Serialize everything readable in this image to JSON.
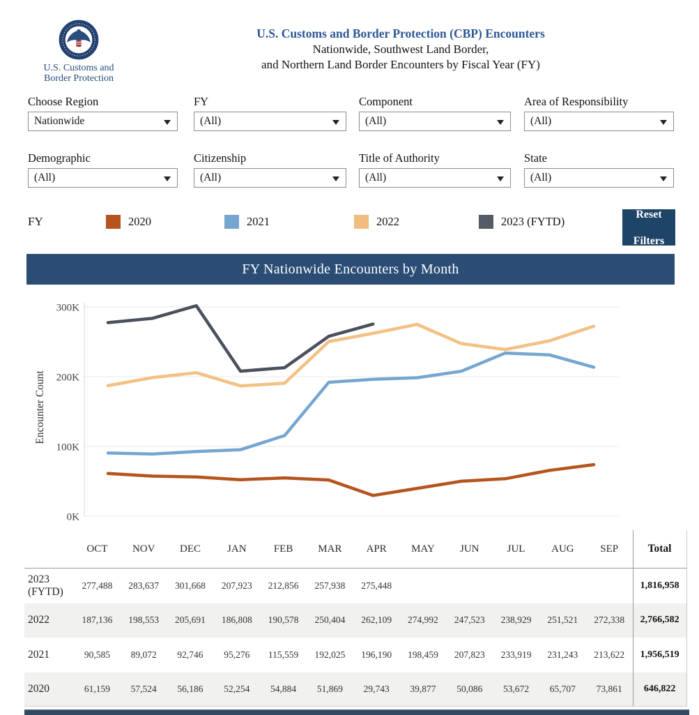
{
  "header": {
    "agency_line1": "U.S. Customs and",
    "agency_line2": "Border Protection",
    "title": "U.S. Customs and Border Protection (CBP) Encounters",
    "subtitle1": "Nationwide, Southwest Land Border,",
    "subtitle2": "and Northern Land Border Encounters by Fiscal Year (FY)",
    "title_color": "#2d5796"
  },
  "filters": {
    "items": [
      {
        "label": "Choose Region",
        "value": "Nationwide"
      },
      {
        "label": "FY",
        "value": "(All)"
      },
      {
        "label": "Component",
        "value": "(All)"
      },
      {
        "label": "Area of Responsibility",
        "value": "(All)"
      },
      {
        "label": "Demographic",
        "value": "(All)"
      },
      {
        "label": "Citizenship",
        "value": "(All)"
      },
      {
        "label": "Title of Authority",
        "value": "(All)"
      },
      {
        "label": "State",
        "value": "(All)"
      }
    ]
  },
  "legend": {
    "title": "FY",
    "items": [
      {
        "label": "2020",
        "color": "#b5541d"
      },
      {
        "label": "2021",
        "color": "#76a6d0"
      },
      {
        "label": "2022",
        "color": "#f0bd7e"
      },
      {
        "label": "2023 (FYTD)",
        "color": "#545a66"
      }
    ]
  },
  "reset_button": {
    "line1": "Reset",
    "line2": "Filters",
    "color": "#1e4468"
  },
  "chart_data": {
    "type": "line",
    "title": "FY Nationwide Encounters by Month",
    "x_categories": [
      "OCT",
      "NOV",
      "DEC",
      "JAN",
      "FEB",
      "MAR",
      "APR",
      "MAY",
      "JUN",
      "JUL",
      "AUG",
      "SEP"
    ],
    "ylabel": "Encounter Count",
    "yticks": [
      "0K",
      "100K",
      "200K",
      "300K"
    ],
    "ylim": [
      0,
      300000
    ],
    "grid": "horizontal",
    "legend_position": "above",
    "series": [
      {
        "name": "2020",
        "color": "#b5541d",
        "values": [
          61159,
          57524,
          56186,
          52254,
          54884,
          51869,
          29743,
          39877,
          50086,
          53672,
          65707,
          73861
        ]
      },
      {
        "name": "2021",
        "color": "#76a6d0",
        "values": [
          90585,
          89072,
          92746,
          95276,
          115559,
          192025,
          196190,
          198459,
          207823,
          233919,
          231243,
          213622
        ]
      },
      {
        "name": "2022",
        "color": "#f2c183",
        "values": [
          187136,
          198553,
          205691,
          186808,
          190578,
          250404,
          262109,
          274992,
          247523,
          238929,
          251521,
          272338
        ]
      },
      {
        "name": "2023 (FYTD)",
        "color": "#4a505c",
        "values": [
          277488,
          283637,
          301668,
          207923,
          212856,
          257938,
          275448,
          null,
          null,
          null,
          null,
          null
        ]
      }
    ]
  },
  "table": {
    "columns": [
      "OCT",
      "NOV",
      "DEC",
      "JAN",
      "FEB",
      "MAR",
      "APR",
      "MAY",
      "JUN",
      "JUL",
      "AUG",
      "SEP"
    ],
    "total_label": "Total",
    "rows": [
      {
        "label": "2023 (FYTD)",
        "cells": [
          "277,488",
          "283,637",
          "301,668",
          "207,923",
          "212,856",
          "257,938",
          "275,448",
          "",
          "",
          "",
          "",
          ""
        ],
        "total": "1,816,958"
      },
      {
        "label": "2022",
        "cells": [
          "187,136",
          "198,553",
          "205,691",
          "186,808",
          "190,578",
          "250,404",
          "262,109",
          "274,992",
          "247,523",
          "238,929",
          "251,521",
          "272,338"
        ],
        "total": "2,766,582"
      },
      {
        "label": "2021",
        "cells": [
          "90,585",
          "89,072",
          "92,746",
          "95,276",
          "115,559",
          "192,025",
          "196,190",
          "198,459",
          "207,823",
          "233,919",
          "231,243",
          "213,622"
        ],
        "total": "1,956,519"
      },
      {
        "label": "2020",
        "cells": [
          "61,159",
          "57,524",
          "56,186",
          "52,254",
          "54,884",
          "51,869",
          "29,743",
          "39,877",
          "50,086",
          "53,672",
          "65,707",
          "73,861"
        ],
        "total": "646,822"
      }
    ]
  }
}
